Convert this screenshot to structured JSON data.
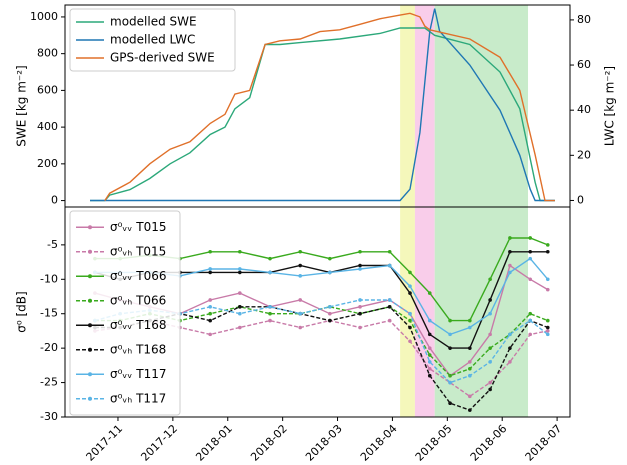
{
  "chart_data": [
    {
      "type": "line",
      "ylabel": "SWE [kg m⁻²]",
      "y2label": "LWC [kg m⁻²]",
      "xlim": [
        -0.965,
        8.235
      ],
      "ylim": [
        -35,
        1065
      ],
      "yticks": [
        0,
        200,
        400,
        600,
        800,
        1000
      ],
      "y2lim": [
        -2.9,
        86.6
      ],
      "y2ticks": [
        0,
        20,
        40,
        60,
        80
      ],
      "legend": "upper left",
      "spans": [
        {
          "start": 5.14,
          "end": 5.41,
          "color": "#f4f6b4"
        },
        {
          "start": 5.41,
          "end": 5.77,
          "color": "#f8c8e8"
        },
        {
          "start": 5.77,
          "end": 7.47,
          "color": "#c2e9c4"
        }
      ],
      "series": [
        {
          "name": "modelled SWE",
          "color": "#2ca87a",
          "x": [
            -0.51,
            -0.24,
            -0.15,
            0.22,
            0.58,
            0.95,
            1.31,
            1.68,
            1.95,
            2.13,
            2.4,
            2.68,
            2.95,
            3.32,
            4.04,
            4.77,
            5.14,
            5.59,
            5.77,
            6.41,
            6.96,
            7.32,
            7.6,
            7.69,
            7.96
          ],
          "values": [
            0,
            0,
            30,
            60,
            120,
            200,
            260,
            360,
            400,
            500,
            560,
            850,
            850,
            860,
            880,
            910,
            940,
            940,
            900,
            850,
            700,
            500,
            100,
            0,
            0
          ]
        },
        {
          "name": "modelled LWC",
          "color": "#1f77b4",
          "axis": "y2",
          "x": [
            -0.51,
            5.14,
            5.32,
            5.5,
            5.68,
            5.77,
            5.86,
            6.41,
            6.96,
            7.32,
            7.51,
            7.6,
            7.96
          ],
          "values": [
            0,
            0,
            5,
            30,
            75,
            85,
            75,
            60,
            40,
            20,
            5,
            0,
            0
          ]
        },
        {
          "name": "GPS-derived SWE",
          "color": "#e0702a",
          "x": [
            -0.24,
            -0.15,
            0.22,
            0.58,
            0.95,
            1.31,
            1.68,
            1.95,
            2.13,
            2.4,
            2.68,
            2.95,
            3.32,
            3.68,
            4.04,
            4.41,
            4.77,
            5.14,
            5.32,
            5.5,
            5.59,
            5.68,
            6.41,
            6.96,
            7.32,
            7.6,
            7.78,
            7.96
          ],
          "values": [
            0,
            40,
            100,
            200,
            280,
            320,
            420,
            470,
            580,
            600,
            850,
            870,
            880,
            920,
            930,
            960,
            990,
            1010,
            1020,
            1000,
            950,
            930,
            880,
            780,
            600,
            250,
            0,
            0
          ]
        }
      ]
    },
    {
      "type": "line",
      "ylabel": "σ⁰ [dB]",
      "legend": "upper left",
      "xlim": [
        -0.965,
        8.235
      ],
      "ylim": [
        -30,
        0.5
      ],
      "yticks": [
        -30,
        -25,
        -20,
        -15,
        -10,
        -5
      ],
      "xticks": [
        {
          "value": 0,
          "label": "2017-11"
        },
        {
          "value": 1,
          "label": "2017-12"
        },
        {
          "value": 2,
          "label": "2018-01"
        },
        {
          "value": 3,
          "label": "2018-02"
        },
        {
          "value": 4,
          "label": "2018-03"
        },
        {
          "value": 5,
          "label": "2018-04"
        },
        {
          "value": 6,
          "label": "2018-05"
        },
        {
          "value": 7,
          "label": "2018-06"
        },
        {
          "value": 8,
          "label": "2018-07"
        }
      ],
      "spans": [
        {
          "start": 5.14,
          "end": 5.41,
          "color": "#f4f6b4"
        },
        {
          "start": 5.41,
          "end": 5.77,
          "color": "#f8c8e8"
        },
        {
          "start": 5.77,
          "end": 7.47,
          "color": "#c2e9c4"
        }
      ],
      "x": [
        -0.42,
        0.04,
        0.58,
        1.13,
        1.68,
        2.22,
        2.77,
        3.32,
        3.86,
        4.41,
        4.95,
        5.32,
        5.68,
        6.05,
        6.41,
        6.78,
        7.14,
        7.51,
        7.83
      ],
      "series": [
        {
          "name": "σ⁰ᵥᵥ T015",
          "color": "#c87aa8",
          "dashed": false,
          "values": [
            -12,
            -13,
            -14,
            -15,
            -13,
            -12,
            -14,
            -13,
            -15,
            -14,
            -13,
            -15,
            -20,
            -24,
            -22,
            -18,
            -8,
            -10,
            -11.5
          ]
        },
        {
          "name": "σ⁰ᵥₕ T015",
          "color": "#c87aa8",
          "dashed": true,
          "values": [
            -17.5,
            -17,
            -16,
            -17,
            -18,
            -17,
            -16,
            -17,
            -16,
            -17,
            -16,
            -19,
            -23,
            -25,
            -27,
            -25,
            -22,
            -18,
            -17.5
          ]
        },
        {
          "name": "σ⁰ᵥᵥ T066",
          "color": "#3aaa1e",
          "dashed": false,
          "values": [
            -7,
            -7,
            -6.5,
            -7,
            -6,
            -6,
            -7,
            -6,
            -7,
            -6,
            -6,
            -9,
            -12,
            -16,
            -16,
            -10,
            -4,
            -4,
            -5
          ]
        },
        {
          "name": "σ⁰ᵥₕ T066",
          "color": "#3aaa1e",
          "dashed": true,
          "values": [
            -16,
            -16,
            -15,
            -16,
            -15,
            -14,
            -15,
            -15,
            -14,
            -15,
            -14,
            -16,
            -21,
            -24,
            -23,
            -20,
            -18,
            -15,
            -16
          ]
        },
        {
          "name": "σ⁰ᵥᵥ T168",
          "color": "#111111",
          "dashed": false,
          "values": [
            -9,
            -10,
            -9,
            -9,
            -9,
            -9,
            -9,
            -8,
            -9,
            -8,
            -8,
            -12,
            -18,
            -20,
            -20,
            -13,
            -6,
            -6,
            -6
          ]
        },
        {
          "name": "σ⁰ᵥₕ T168",
          "color": "#111111",
          "dashed": true,
          "values": [
            -17,
            -17,
            -16,
            -15,
            -16,
            -14,
            -14,
            -15,
            -16,
            -15,
            -14,
            -17,
            -24,
            -28,
            -29,
            -26,
            -20,
            -16,
            -17
          ]
        },
        {
          "name": "σ⁰ᵥᵥ T117",
          "color": "#5ab4e5",
          "dashed": false,
          "values": [
            -9,
            -9,
            -9,
            -9.5,
            -8.5,
            -8.5,
            -9,
            -9.5,
            -9,
            -8.5,
            -8,
            -11,
            -16,
            -18,
            -17,
            -15,
            -9,
            -7,
            -10
          ]
        },
        {
          "name": "σ⁰ᵥₕ T117",
          "color": "#5ab4e5",
          "dashed": true,
          "values": [
            -16,
            -15,
            -14.5,
            -15,
            -14,
            -15,
            -14,
            -15,
            -14,
            -13,
            -13,
            -15,
            -22,
            -25,
            -24,
            -22,
            -18,
            -16,
            -18
          ]
        }
      ]
    }
  ]
}
